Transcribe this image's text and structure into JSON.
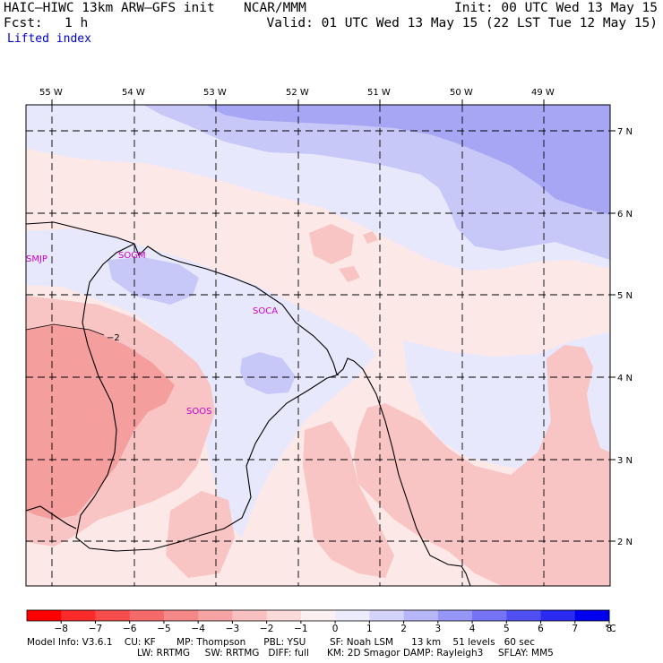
{
  "header": {
    "title": "HAIC–HIWC 13km ARW–GFS init",
    "producer": "NCAR/MMM",
    "init": "Init: 00 UTC Wed 13 May 15",
    "fcst_label": "Fcst:",
    "fcst_value": "1 h",
    "valid": "Valid: 01 UTC Wed 13 May 15 (22 LST Tue 12 May 15)",
    "field": "Lifted index"
  },
  "map": {
    "longitude_labels": [
      "55 W",
      "54 W",
      "53 W",
      "52 W",
      "51 W",
      "50 W",
      "49 W"
    ],
    "latitude_labels": [
      "7 N",
      "6 N",
      "5 N",
      "4 N",
      "3 N",
      "2 N"
    ],
    "stations": [
      "SMJP",
      "SOGM",
      "SOCA",
      "SOOS"
    ],
    "contour_label": "−2",
    "colors": {
      "pos_light": "#e8e8fc",
      "pos_1": "#c8c8f8",
      "pos_2": "#a6a6f4",
      "neg_light": "#fde8e8",
      "neg_1": "#f8c4c4",
      "neg_2": "#f49e9e"
    }
  },
  "colorbar": {
    "ticks": [
      "−8",
      "−7",
      "−6",
      "−5",
      "−4",
      "−3",
      "−2",
      "−1",
      "0",
      "1",
      "2",
      "3",
      "4",
      "5",
      "6",
      "7",
      "8"
    ],
    "unit": "°C",
    "colors": [
      "#ff0000",
      "#fb2a2a",
      "#f74c4c",
      "#f46a6a",
      "#f48888",
      "#f5a3a3",
      "#f8c0c0",
      "#fbdada",
      "#fdf0f0",
      "#ececfc",
      "#d4d4fa",
      "#b6b6f8",
      "#9696f6",
      "#7474f4",
      "#5050f2",
      "#2a2af0",
      "#0000ee"
    ]
  },
  "model_info": {
    "line1": "Model Info: V3.6.1    CU: KF       MP: Thompson      PBL: YSU        SF: Noah LSM      13 km    51 levels   60 sec",
    "line2": "LW: RRTMG     SW: RRTMG   DIFF: full      KM: 2D Smagor DAMP: Rayleigh3     SFLAY: MM5"
  }
}
